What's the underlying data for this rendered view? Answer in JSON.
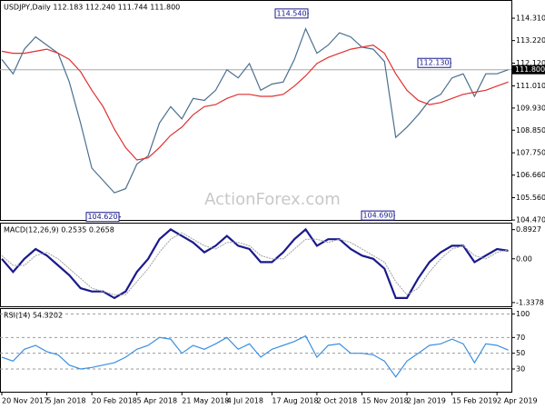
{
  "chart_data": [
    {
      "type": "line",
      "title": "USDJPY,Daily 112.183 112.240 111.744 111.800",
      "watermark": "ActionForex.com",
      "ylim": [
        104.43,
        115.11
      ],
      "yticks": [
        {
          "value": 114.31,
          "label": "114.310"
        },
        {
          "value": 113.22,
          "label": "113.220"
        },
        {
          "value": 112.12,
          "label": "112.120"
        },
        {
          "value": 111.01,
          "label": "111.010"
        },
        {
          "value": 109.93,
          "label": "109.930"
        },
        {
          "value": 108.85,
          "label": "108.850"
        },
        {
          "value": 107.75,
          "label": "107.750"
        },
        {
          "value": 106.66,
          "label": "106.660"
        },
        {
          "value": 105.56,
          "label": "105.560"
        },
        {
          "value": 104.47,
          "label": "104.470"
        }
      ],
      "grid": false,
      "current_price": {
        "value": 111.8,
        "label": "111.800"
      },
      "annotations": [
        {
          "value": 114.54,
          "label": "114.540"
        },
        {
          "value": 104.62,
          "label": "104.620"
        },
        {
          "value": 104.69,
          "label": "104.690"
        },
        {
          "value": 112.13,
          "label": "112.130"
        }
      ],
      "series": [
        {
          "color": "#4a6f8f",
          "values": [
            112.3,
            111.6,
            112.8,
            113.4,
            113.0,
            112.6,
            111.2,
            109.2,
            107.0,
            106.4,
            105.8,
            106.0,
            107.2,
            107.6,
            109.2,
            110.0,
            109.4,
            110.4,
            110.3,
            110.8,
            111.8,
            111.4,
            112.1,
            110.8,
            111.1,
            111.2,
            112.3,
            113.8,
            112.6,
            113.0,
            113.6,
            113.4,
            112.9,
            112.8,
            112.2,
            108.5,
            109.0,
            109.6,
            110.3,
            110.6,
            111.4,
            111.6,
            110.5,
            111.6,
            111.6,
            111.8
          ]
        },
        {
          "color": "#e03030",
          "values": [
            112.7,
            112.6,
            112.6,
            112.7,
            112.8,
            112.6,
            112.3,
            111.7,
            110.8,
            110.0,
            108.9,
            108.0,
            107.4,
            107.5,
            108.0,
            108.6,
            109.0,
            109.6,
            110.0,
            110.1,
            110.4,
            110.6,
            110.6,
            110.5,
            110.5,
            110.6,
            111.0,
            111.5,
            112.1,
            112.4,
            112.6,
            112.8,
            112.9,
            113.0,
            112.6,
            111.6,
            110.8,
            110.3,
            110.1,
            110.2,
            110.4,
            110.6,
            110.7,
            110.8,
            111.0,
            111.2
          ]
        }
      ]
    },
    {
      "type": "line",
      "title": "MACD(12,26,9) 0.2535 0.2658",
      "ylim": [
        -1.48,
        1.05
      ],
      "yticks": [
        0.8927,
        {
          "value": 0,
          "label": "0.00"
        },
        -1.3378
      ],
      "grid": false,
      "series": [
        {
          "color": "#1a1a8c",
          "values": [
            0.0,
            -0.4,
            0.0,
            0.3,
            0.1,
            -0.2,
            -0.5,
            -0.9,
            -1.0,
            -1.0,
            -1.2,
            -1.0,
            -0.4,
            0.0,
            0.6,
            0.9,
            0.7,
            0.5,
            0.2,
            0.4,
            0.7,
            0.4,
            0.3,
            -0.1,
            -0.1,
            0.2,
            0.6,
            0.9,
            0.4,
            0.6,
            0.6,
            0.3,
            0.1,
            0.0,
            -0.3,
            -1.2,
            -1.2,
            -0.6,
            -0.1,
            0.2,
            0.4,
            0.4,
            -0.1,
            0.1,
            0.3,
            0.25
          ]
        },
        {
          "color": "#a0a0a0",
          "values": [
            0.1,
            -0.2,
            -0.2,
            0.1,
            0.2,
            0.0,
            -0.3,
            -0.6,
            -0.9,
            -1.0,
            -1.1,
            -1.1,
            -0.7,
            -0.3,
            0.2,
            0.6,
            0.8,
            0.6,
            0.4,
            0.3,
            0.5,
            0.5,
            0.4,
            0.1,
            0.0,
            0.0,
            0.3,
            0.6,
            0.6,
            0.5,
            0.6,
            0.5,
            0.3,
            0.1,
            -0.1,
            -0.7,
            -1.1,
            -0.9,
            -0.4,
            0.0,
            0.3,
            0.4,
            0.1,
            0.0,
            0.2,
            0.27
          ]
        }
      ]
    },
    {
      "type": "line",
      "title": "RSI(14) 54.3202",
      "ylim": [
        0,
        105
      ],
      "yticks": [
        100,
        70,
        50,
        30
      ],
      "grid": true,
      "categories": [
        "20 Nov 2017",
        null,
        null,
        null,
        "5 Jan 2018",
        null,
        null,
        null,
        "20 Feb 2018",
        null,
        null,
        null,
        "5 Apr 2018",
        null,
        null,
        null,
        "21 May 2018",
        null,
        null,
        null,
        "4 Jul 2018",
        null,
        null,
        null,
        "17 Aug 2018",
        null,
        null,
        null,
        "2 Oct 2018",
        null,
        null,
        null,
        "15 Nov 2018",
        null,
        null,
        null,
        "2 Jan 2019",
        null,
        null,
        null,
        "15 Feb 2019",
        null,
        null,
        null,
        "2 Apr 2019",
        null
      ],
      "series": [
        {
          "color": "#3b8fe0",
          "values": [
            45,
            40,
            55,
            60,
            52,
            48,
            35,
            30,
            32,
            35,
            38,
            45,
            55,
            60,
            70,
            68,
            50,
            60,
            55,
            62,
            70,
            55,
            62,
            45,
            55,
            60,
            65,
            72,
            45,
            60,
            62,
            50,
            50,
            48,
            40,
            20,
            40,
            50,
            60,
            62,
            68,
            62,
            38,
            62,
            60,
            54
          ]
        }
      ]
    }
  ]
}
